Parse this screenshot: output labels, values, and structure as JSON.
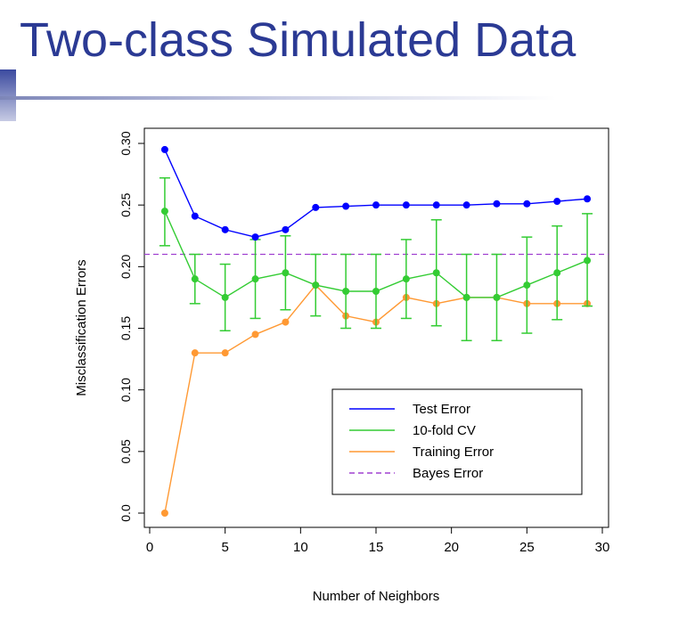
{
  "slide": {
    "title": "Two-class Simulated Data"
  },
  "colors": {
    "title": "#2b3a94",
    "test": "#0000ff",
    "cv": "#33cc33",
    "train": "#ff9933",
    "bayes": "#a040d0"
  },
  "chart_data": {
    "type": "line",
    "xlabel": "Number of Neighbors",
    "ylabel": "Misclassification Errors",
    "xlim": [
      0,
      30
    ],
    "ylim": [
      0,
      0.3
    ],
    "x_ticks": [
      "0",
      "5",
      "10",
      "15",
      "20",
      "25",
      "30"
    ],
    "y_ticks": [
      "0.0",
      "0.05",
      "0.10",
      "0.15",
      "0.20",
      "0.25",
      "0.30"
    ],
    "x": [
      1,
      3,
      5,
      7,
      9,
      11,
      13,
      15,
      17,
      19,
      21,
      23,
      25,
      27,
      29
    ],
    "series": [
      {
        "name": "Test Error",
        "color": "#0000ff",
        "values": [
          0.295,
          0.241,
          0.23,
          0.224,
          0.23,
          0.248,
          0.249,
          0.25,
          0.25,
          0.25,
          0.25,
          0.251,
          0.251,
          0.253,
          0.255
        ]
      },
      {
        "name": "10-fold CV",
        "color": "#33cc33",
        "values": [
          0.245,
          0.19,
          0.175,
          0.19,
          0.195,
          0.185,
          0.18,
          0.18,
          0.19,
          0.195,
          0.175,
          0.175,
          0.185,
          0.195,
          0.205
        ],
        "error_low": [
          0.217,
          0.17,
          0.148,
          0.158,
          0.165,
          0.16,
          0.15,
          0.15,
          0.158,
          0.152,
          0.14,
          0.14,
          0.146,
          0.157,
          0.168
        ],
        "error_high": [
          0.272,
          0.21,
          0.202,
          0.222,
          0.225,
          0.21,
          0.21,
          0.21,
          0.222,
          0.238,
          0.21,
          0.21,
          0.224,
          0.233,
          0.243
        ]
      },
      {
        "name": "Training Error",
        "color": "#ff9933",
        "values": [
          0.0,
          0.13,
          0.13,
          0.145,
          0.155,
          0.185,
          0.16,
          0.155,
          0.175,
          0.17,
          0.175,
          0.175,
          0.17,
          0.17,
          0.17
        ]
      }
    ],
    "reference_lines": [
      {
        "name": "Bayes Error",
        "color": "#a040d0",
        "y": 0.21,
        "style": "dashed"
      }
    ],
    "legend": {
      "position": "bottom-right",
      "entries": [
        "Test Error",
        "10-fold CV",
        "Training Error",
        "Bayes Error"
      ]
    },
    "grid": false
  }
}
